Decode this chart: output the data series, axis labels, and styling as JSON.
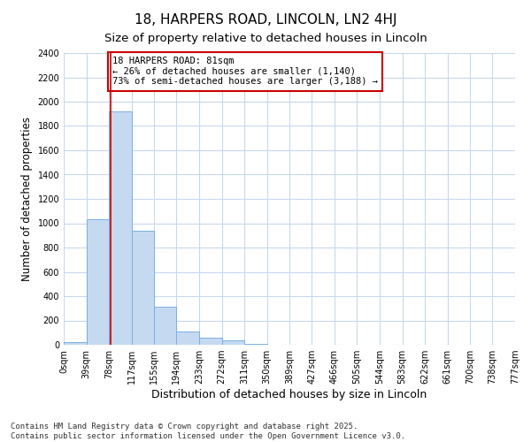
{
  "title1": "18, HARPERS ROAD, LINCOLN, LN2 4HJ",
  "title2": "Size of property relative to detached houses in Lincoln",
  "xlabel": "Distribution of detached houses by size in Lincoln",
  "ylabel": "Number of detached properties",
  "bar_values": [
    20,
    1030,
    1920,
    935,
    315,
    110,
    55,
    35,
    10,
    0,
    0,
    0,
    0,
    0,
    0,
    0,
    0,
    0,
    0,
    0
  ],
  "bin_edges": [
    0,
    39,
    78,
    117,
    155,
    194,
    233,
    272,
    311,
    350,
    389,
    427,
    466,
    505,
    544,
    583,
    622,
    661,
    700,
    738,
    777
  ],
  "bin_labels": [
    "0sqm",
    "39sqm",
    "78sqm",
    "117sqm",
    "155sqm",
    "194sqm",
    "233sqm",
    "272sqm",
    "311sqm",
    "350sqm",
    "389sqm",
    "427sqm",
    "466sqm",
    "505sqm",
    "544sqm",
    "583sqm",
    "622sqm",
    "661sqm",
    "700sqm",
    "738sqm",
    "777sqm"
  ],
  "bar_color": "#c5d9f1",
  "bar_edge_color": "#7ab0e0",
  "property_line_x": 81,
  "property_line_color": "#cc0000",
  "annotation_text": "18 HARPERS ROAD: 81sqm\n← 26% of detached houses are smaller (1,140)\n73% of semi-detached houses are larger (3,188) →",
  "annotation_box_color": "#cc0000",
  "ylim": [
    0,
    2400
  ],
  "yticks": [
    0,
    200,
    400,
    600,
    800,
    1000,
    1200,
    1400,
    1600,
    1800,
    2000,
    2200,
    2400
  ],
  "bg_color": "#ffffff",
  "plot_bg_color": "#ffffff",
  "grid_color": "#c8d8ee",
  "footnote": "Contains HM Land Registry data © Crown copyright and database right 2025.\nContains public sector information licensed under the Open Government Licence v3.0.",
  "title_fontsize": 11,
  "subtitle_fontsize": 9.5,
  "ylabel_fontsize": 8.5,
  "xlabel_fontsize": 9,
  "tick_fontsize": 7,
  "annotation_fontsize": 7.5,
  "footnote_fontsize": 6.5
}
